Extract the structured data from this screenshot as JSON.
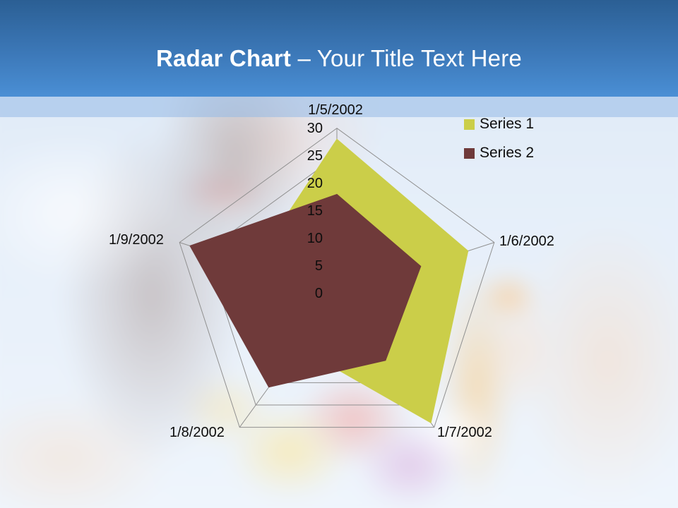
{
  "header": {
    "title_bold": "Radar Chart",
    "title_rest": " – Your Title Text Here"
  },
  "chart_data": {
    "type": "radar",
    "categories": [
      "1/5/2002",
      "1/6/2002",
      "1/7/2002",
      "1/8/2002",
      "1/9/2002"
    ],
    "series": [
      {
        "name": "Series 1",
        "color": "#cbce49",
        "values": [
          28,
          25,
          29,
          12,
          16
        ]
      },
      {
        "name": "Series 2",
        "color": "#6f3a3a",
        "values": [
          18,
          16,
          15,
          21,
          28
        ]
      }
    ],
    "radial_axis": {
      "min": 0,
      "max": 30,
      "step": 5,
      "tick_labels": [
        "0",
        "5",
        "10",
        "15",
        "20",
        "25",
        "30"
      ]
    },
    "gridline_color": "#909090",
    "legend_position": "top-right"
  }
}
